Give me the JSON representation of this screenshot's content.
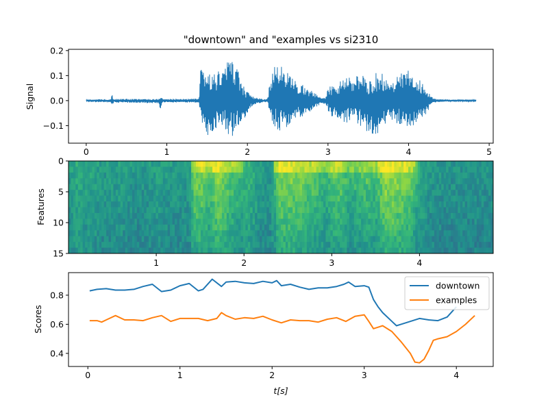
{
  "chart_data": [
    {
      "type": "line",
      "title": "\"downtown\" and \"examples vs si2310",
      "ylabel": "Signal",
      "xlim": [
        -0.22,
        5.05
      ],
      "ylim": [
        -0.17,
        0.205
      ],
      "xticks": [
        "0",
        "1",
        "2",
        "3",
        "4",
        "5"
      ],
      "yticks": [
        "−0.1",
        "0.0",
        "0.1",
        "0.2"
      ],
      "line_color": "#1f77b4",
      "series": [
        {
          "envelope_x": [
            0,
            0.3,
            0.32,
            0.34,
            0.9,
            0.92,
            0.95,
            1.4,
            1.42,
            1.5,
            1.6,
            1.7,
            1.78,
            1.85,
            1.95,
            2.05,
            2.1,
            2.15,
            2.2,
            2.25,
            2.3,
            2.4,
            2.5,
            2.6,
            2.7,
            2.8,
            2.9,
            2.97,
            3.0,
            3.05,
            3.1,
            3.2,
            3.3,
            3.4,
            3.5,
            3.6,
            3.7,
            3.8,
            3.9,
            4.0,
            4.1,
            4.2,
            4.3,
            4.35,
            4.5,
            4.84
          ],
          "upper": [
            0.004,
            0.007,
            0.03,
            0.007,
            0.007,
            0.025,
            0.007,
            0.008,
            0.125,
            0.12,
            0.11,
            0.13,
            0.185,
            0.15,
            0.06,
            0.02,
            0.012,
            0.01,
            0.006,
            0.007,
            0.125,
            0.15,
            0.11,
            0.08,
            0.06,
            0.04,
            0.015,
            0.012,
            0.05,
            0.065,
            0.06,
            0.1,
            0.09,
            0.105,
            0.095,
            0.115,
            0.105,
            0.085,
            0.11,
            0.12,
            0.095,
            0.06,
            0.012,
            0.007,
            0.004,
            0.004
          ],
          "lower": [
            -0.004,
            -0.008,
            -0.03,
            -0.008,
            -0.01,
            -0.035,
            -0.007,
            -0.008,
            -0.08,
            -0.15,
            -0.115,
            -0.11,
            -0.155,
            -0.13,
            -0.08,
            -0.025,
            -0.013,
            -0.01,
            -0.006,
            -0.008,
            -0.105,
            -0.12,
            -0.11,
            -0.075,
            -0.06,
            -0.04,
            -0.015,
            -0.012,
            -0.04,
            -0.07,
            -0.065,
            -0.09,
            -0.085,
            -0.1,
            -0.13,
            -0.155,
            -0.1,
            -0.08,
            -0.1,
            -0.12,
            -0.09,
            -0.06,
            -0.012,
            -0.006,
            -0.004,
            -0.004
          ]
        }
      ]
    },
    {
      "type": "heatmap",
      "ylabel": "Features",
      "xticks": [
        "1",
        "2",
        "3",
        "4"
      ],
      "xtick_values": [
        1,
        2,
        3,
        4
      ],
      "xlim": [
        0,
        4.84
      ],
      "yticks": [
        "0",
        "5",
        "10",
        "15"
      ],
      "ytick_values": [
        0,
        5,
        10,
        15
      ],
      "ylim": [
        0,
        15
      ],
      "colormap": [
        "#440154",
        "#31688e",
        "#21918c",
        "#35b779",
        "#90d743",
        "#fde725"
      ],
      "column_profile": {
        "x": [
          0,
          0.1,
          0.2,
          0.3,
          0.4,
          0.6,
          0.8,
          1.0,
          1.2,
          1.38,
          1.42,
          1.5,
          1.6,
          1.7,
          1.8,
          1.9,
          2.0,
          2.1,
          2.2,
          2.3,
          2.4,
          2.6,
          2.8,
          2.95,
          3.0,
          3.1,
          3.2,
          3.3,
          3.4,
          3.5,
          3.6,
          3.7,
          3.8,
          3.9,
          4.0,
          4.1,
          4.3,
          4.84
        ],
        "intensity": [
          0.45,
          0.55,
          0.5,
          0.5,
          0.45,
          0.48,
          0.42,
          0.48,
          0.45,
          0.45,
          0.75,
          0.8,
          0.7,
          0.85,
          0.75,
          0.65,
          0.6,
          0.55,
          0.45,
          0.45,
          0.8,
          0.8,
          0.7,
          0.6,
          0.7,
          0.75,
          0.6,
          0.65,
          0.7,
          0.65,
          0.85,
          0.85,
          0.8,
          0.75,
          0.55,
          0.45,
          0.42,
          0.42
        ]
      }
    },
    {
      "type": "line",
      "xlabel": "t[s]",
      "ylabel": "Scores",
      "xlim": [
        -0.21,
        4.4
      ],
      "ylim": [
        0.31,
        0.955
      ],
      "xticks": [
        "0",
        "1",
        "2",
        "3",
        "4"
      ],
      "yticks": [
        "0.4",
        "0.6",
        "0.8"
      ],
      "legend_position": "top-right",
      "series": [
        {
          "name": "downtown",
          "color": "#1f77b4",
          "x": [
            0.02,
            0.1,
            0.2,
            0.3,
            0.4,
            0.5,
            0.6,
            0.7,
            0.8,
            0.9,
            1.0,
            1.1,
            1.2,
            1.25,
            1.35,
            1.45,
            1.5,
            1.6,
            1.7,
            1.8,
            1.9,
            2.0,
            2.05,
            2.1,
            2.2,
            2.3,
            2.4,
            2.5,
            2.6,
            2.7,
            2.78,
            2.83,
            2.9,
            3.0,
            3.05,
            3.1,
            3.15,
            3.2,
            3.3,
            3.35,
            3.4,
            3.5,
            3.6,
            3.7,
            3.8,
            3.9,
            4.0
          ],
          "y": [
            0.83,
            0.84,
            0.845,
            0.835,
            0.835,
            0.84,
            0.86,
            0.875,
            0.825,
            0.835,
            0.865,
            0.88,
            0.83,
            0.84,
            0.91,
            0.86,
            0.89,
            0.895,
            0.885,
            0.88,
            0.895,
            0.885,
            0.9,
            0.865,
            0.875,
            0.855,
            0.84,
            0.85,
            0.85,
            0.86,
            0.875,
            0.89,
            0.86,
            0.865,
            0.855,
            0.77,
            0.72,
            0.68,
            0.62,
            0.59,
            0.6,
            0.62,
            0.64,
            0.63,
            0.625,
            0.65,
            0.72
          ]
        },
        {
          "name": "examples",
          "color": "#ff7f0e",
          "x": [
            0.02,
            0.1,
            0.15,
            0.2,
            0.3,
            0.4,
            0.5,
            0.6,
            0.7,
            0.8,
            0.9,
            1.0,
            1.1,
            1.2,
            1.3,
            1.4,
            1.45,
            1.5,
            1.6,
            1.7,
            1.8,
            1.9,
            2.0,
            2.1,
            2.2,
            2.3,
            2.4,
            2.5,
            2.6,
            2.7,
            2.8,
            2.9,
            3.0,
            3.05,
            3.1,
            3.15,
            3.2,
            3.3,
            3.4,
            3.5,
            3.55,
            3.6,
            3.65,
            3.7,
            3.75,
            3.8,
            3.9,
            4.0,
            4.1,
            4.2
          ],
          "y": [
            0.625,
            0.625,
            0.615,
            0.63,
            0.66,
            0.63,
            0.63,
            0.625,
            0.645,
            0.66,
            0.62,
            0.64,
            0.64,
            0.64,
            0.625,
            0.64,
            0.68,
            0.66,
            0.635,
            0.645,
            0.64,
            0.655,
            0.63,
            0.61,
            0.63,
            0.625,
            0.625,
            0.615,
            0.635,
            0.645,
            0.62,
            0.655,
            0.665,
            0.62,
            0.57,
            0.58,
            0.59,
            0.55,
            0.48,
            0.4,
            0.34,
            0.335,
            0.36,
            0.42,
            0.49,
            0.5,
            0.515,
            0.55,
            0.6,
            0.66
          ]
        }
      ]
    }
  ]
}
